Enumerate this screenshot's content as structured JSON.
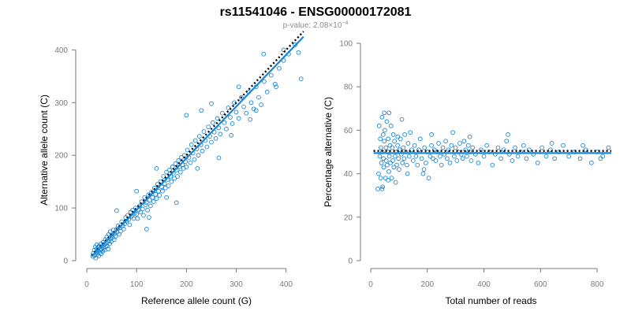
{
  "title": "rs11541046 - ENSG00000172081",
  "subtitle": {
    "prefix": "p-value: 2.08×10",
    "exponent": "−4"
  },
  "colors": {
    "points": "#1a87d6",
    "fit_line": "#1a87d6",
    "reference_line": "#000000",
    "axis": "#7a7a7a"
  },
  "chart_data": [
    {
      "type": "scatter",
      "xlabel": "Reference allele count (G)",
      "ylabel": "Alternative allele count (C)",
      "xlim": [
        0,
        440
      ],
      "ylim": [
        0,
        420
      ],
      "x_ticks": [
        0,
        100,
        200,
        300,
        400
      ],
      "y_ticks": [
        0,
        100,
        200,
        300,
        400
      ],
      "grid": false,
      "legend": "none",
      "fit_line": {
        "style": "solid",
        "points": [
          [
            10,
            8
          ],
          [
            435,
            425
          ]
        ]
      },
      "reference_line": {
        "style": "dotted",
        "points": [
          [
            10,
            10
          ],
          [
            435,
            435
          ]
        ]
      },
      "points": [
        [
          12,
          8
        ],
        [
          13,
          14
        ],
        [
          15,
          20
        ],
        [
          16,
          10
        ],
        [
          17,
          26
        ],
        [
          18,
          5
        ],
        [
          19,
          16
        ],
        [
          20,
          22
        ],
        [
          20,
          30
        ],
        [
          21,
          12
        ],
        [
          22,
          18
        ],
        [
          23,
          25
        ],
        [
          24,
          9
        ],
        [
          25,
          28
        ],
        [
          26,
          15
        ],
        [
          27,
          20
        ],
        [
          28,
          32
        ],
        [
          29,
          13
        ],
        [
          30,
          22
        ],
        [
          31,
          27
        ],
        [
          32,
          18
        ],
        [
          33,
          35
        ],
        [
          34,
          24
        ],
        [
          35,
          30
        ],
        [
          36,
          20
        ],
        [
          37,
          40
        ],
        [
          38,
          26
        ],
        [
          39,
          33
        ],
        [
          40,
          45
        ],
        [
          41,
          28
        ],
        [
          42,
          36
        ],
        [
          43,
          22
        ],
        [
          44,
          50
        ],
        [
          45,
          38
        ],
        [
          46,
          32
        ],
        [
          47,
          55
        ],
        [
          48,
          42
        ],
        [
          49,
          36
        ],
        [
          50,
          48
        ],
        [
          52,
          44
        ],
        [
          53,
          58
        ],
        [
          55,
          40
        ],
        [
          56,
          52
        ],
        [
          58,
          46
        ],
        [
          60,
          60
        ],
        [
          61,
          54
        ],
        [
          63,
          66
        ],
        [
          65,
          50
        ],
        [
          66,
          62
        ],
        [
          68,
          56
        ],
        [
          70,
          74
        ],
        [
          72,
          66
        ],
        [
          74,
          60
        ],
        [
          76,
          70
        ],
        [
          78,
          82
        ],
        [
          80,
          75
        ],
        [
          82,
          86
        ],
        [
          84,
          78
        ],
        [
          86,
          68
        ],
        [
          88,
          92
        ],
        [
          90,
          84
        ],
        [
          92,
          96
        ],
        [
          94,
          80
        ],
        [
          96,
          90
        ],
        [
          98,
          100
        ],
        [
          100,
          88
        ],
        [
          102,
          80
        ],
        [
          104,
          96
        ],
        [
          106,
          104
        ],
        [
          108,
          92
        ],
        [
          110,
          112
        ],
        [
          112,
          98
        ],
        [
          114,
          86
        ],
        [
          116,
          120
        ],
        [
          118,
          106
        ],
        [
          120,
          110
        ],
        [
          122,
          96
        ],
        [
          124,
          125
        ],
        [
          126,
          115
        ],
        [
          128,
          104
        ],
        [
          130,
          130
        ],
        [
          132,
          120
        ],
        [
          134,
          112
        ],
        [
          136,
          138
        ],
        [
          138,
          126
        ],
        [
          140,
          118
        ],
        [
          142,
          145
        ],
        [
          144,
          132
        ],
        [
          146,
          124
        ],
        [
          148,
          150
        ],
        [
          150,
          140
        ],
        [
          152,
          132
        ],
        [
          154,
          160
        ],
        [
          156,
          146
        ],
        [
          158,
          138
        ],
        [
          160,
          168
        ],
        [
          162,
          154
        ],
        [
          164,
          142
        ],
        [
          166,
          172
        ],
        [
          168,
          160
        ],
        [
          170,
          150
        ],
        [
          172,
          178
        ],
        [
          174,
          166
        ],
        [
          176,
          156
        ],
        [
          178,
          184
        ],
        [
          180,
          172
        ],
        [
          182,
          160
        ],
        [
          184,
          190
        ],
        [
          186,
          178
        ],
        [
          188,
          168
        ],
        [
          190,
          196
        ],
        [
          192,
          182
        ],
        [
          194,
          175
        ],
        [
          196,
          200
        ],
        [
          198,
          188
        ],
        [
          200,
          178
        ],
        [
          202,
          210
        ],
        [
          205,
          196
        ],
        [
          208,
          186
        ],
        [
          210,
          220
        ],
        [
          213,
          204
        ],
        [
          216,
          192
        ],
        [
          218,
          228
        ],
        [
          221,
          212
        ],
        [
          224,
          200
        ],
        [
          226,
          236
        ],
        [
          229,
          220
        ],
        [
          232,
          208
        ],
        [
          235,
          245
        ],
        [
          238,
          228
        ],
        [
          241,
          216
        ],
        [
          244,
          254
        ],
        [
          247,
          236
        ],
        [
          250,
          225
        ],
        [
          253,
          262
        ],
        [
          256,
          244
        ],
        [
          259,
          232
        ],
        [
          262,
          270
        ],
        [
          265,
          252
        ],
        [
          268,
          240
        ],
        [
          272,
          280
        ],
        [
          276,
          262
        ],
        [
          280,
          250
        ],
        [
          284,
          290
        ],
        [
          288,
          272
        ],
        [
          292,
          260
        ],
        [
          296,
          300
        ],
        [
          300,
          282
        ],
        [
          305,
          270
        ],
        [
          310,
          310
        ],
        [
          315,
          292
        ],
        [
          320,
          280
        ],
        [
          325,
          320
        ],
        [
          330,
          300
        ],
        [
          335,
          288
        ],
        [
          340,
          330
        ],
        [
          345,
          310
        ],
        [
          350,
          296
        ],
        [
          356,
          340
        ],
        [
          362,
          320
        ],
        [
          370,
          352
        ],
        [
          378,
          335
        ],
        [
          386,
          365
        ],
        [
          395,
          380
        ],
        [
          405,
          392
        ],
        [
          418,
          410
        ],
        [
          425,
          395
        ],
        [
          120,
          60
        ],
        [
          125,
          82
        ],
        [
          100,
          132
        ],
        [
          180,
          110
        ],
        [
          200,
          276
        ],
        [
          222,
          175
        ],
        [
          250,
          298
        ],
        [
          290,
          238
        ],
        [
          328,
          268
        ],
        [
          355,
          392
        ],
        [
          395,
          400
        ],
        [
          430,
          345
        ],
        [
          60,
          95
        ],
        [
          140,
          175
        ],
        [
          160,
          120
        ],
        [
          230,
          285
        ],
        [
          265,
          195
        ],
        [
          305,
          330
        ],
        [
          340,
          285
        ],
        [
          380,
          330
        ]
      ]
    },
    {
      "type": "scatter",
      "xlabel": "Total number of reads",
      "ylabel": "Percentage alternative (C)",
      "xlim": [
        0,
        850
      ],
      "ylim": [
        0,
        100
      ],
      "x_ticks": [
        0,
        200,
        400,
        600,
        800
      ],
      "y_ticks": [
        0,
        20,
        40,
        60,
        80,
        100
      ],
      "grid": false,
      "legend": "none",
      "fit_line": {
        "style": "solid",
        "points": [
          [
            10,
            49.5
          ],
          [
            850,
            49.5
          ]
        ]
      },
      "reference_line": {
        "style": "dotted",
        "points": [
          [
            10,
            50.5
          ],
          [
            850,
            50.5
          ]
        ]
      },
      "points": [
        [
          25,
          33
        ],
        [
          28,
          40
        ],
        [
          30,
          62
        ],
        [
          32,
          48
        ],
        [
          34,
          56
        ],
        [
          35,
          38
        ],
        [
          36,
          52
        ],
        [
          38,
          45
        ],
        [
          40,
          66
        ],
        [
          41,
          50
        ],
        [
          42,
          34
        ],
        [
          44,
          58
        ],
        [
          45,
          47
        ],
        [
          46,
          43
        ],
        [
          48,
          55
        ],
        [
          50,
          60
        ],
        [
          52,
          38
        ],
        [
          54,
          52
        ],
        [
          55,
          46
        ],
        [
          57,
          64
        ],
        [
          58,
          44
        ],
        [
          60,
          50
        ],
        [
          62,
          56
        ],
        [
          64,
          41
        ],
        [
          65,
          68
        ],
        [
          66,
          48
        ],
        [
          68,
          53
        ],
        [
          70,
          45
        ],
        [
          72,
          62
        ],
        [
          74,
          38
        ],
        [
          76,
          52
        ],
        [
          78,
          46
        ],
        [
          80,
          58
        ],
        [
          82,
          43
        ],
        [
          84,
          55
        ],
        [
          86,
          48
        ],
        [
          88,
          36
        ],
        [
          90,
          50
        ],
        [
          92,
          44
        ],
        [
          95,
          53
        ],
        [
          98,
          47
        ],
        [
          100,
          42
        ],
        [
          102,
          51
        ],
        [
          105,
          56
        ],
        [
          108,
          49
        ],
        [
          110,
          65
        ],
        [
          112,
          45
        ],
        [
          115,
          52
        ],
        [
          118,
          47
        ],
        [
          120,
          58
        ],
        [
          124,
          50
        ],
        [
          128,
          44
        ],
        [
          132,
          54
        ],
        [
          136,
          48
        ],
        [
          140,
          59
        ],
        [
          145,
          51
        ],
        [
          150,
          46
        ],
        [
          155,
          53
        ],
        [
          160,
          48
        ],
        [
          165,
          44
        ],
        [
          170,
          51
        ],
        [
          175,
          56
        ],
        [
          180,
          47
        ],
        [
          185,
          40
        ],
        [
          190,
          52
        ],
        [
          195,
          45
        ],
        [
          200,
          50
        ],
        [
          205,
          38
        ],
        [
          210,
          48
        ],
        [
          215,
          53
        ],
        [
          220,
          47
        ],
        [
          225,
          51
        ],
        [
          230,
          46
        ],
        [
          235,
          50
        ],
        [
          240,
          54
        ],
        [
          245,
          48
        ],
        [
          250,
          44
        ],
        [
          255,
          52
        ],
        [
          260,
          49
        ],
        [
          265,
          55
        ],
        [
          270,
          47
        ],
        [
          275,
          51
        ],
        [
          280,
          45
        ],
        [
          285,
          53
        ],
        [
          290,
          59
        ],
        [
          295,
          48
        ],
        [
          300,
          52
        ],
        [
          305,
          46
        ],
        [
          310,
          50
        ],
        [
          315,
          54
        ],
        [
          320,
          49
        ],
        [
          325,
          47
        ],
        [
          330,
          55
        ],
        [
          335,
          51
        ],
        [
          340,
          48
        ],
        [
          345,
          53
        ],
        [
          350,
          50
        ],
        [
          355,
          46
        ],
        [
          360,
          52
        ],
        [
          370,
          49
        ],
        [
          380,
          45
        ],
        [
          390,
          51
        ],
        [
          400,
          48
        ],
        [
          410,
          53
        ],
        [
          420,
          50
        ],
        [
          430,
          44
        ],
        [
          440,
          49
        ],
        [
          450,
          52
        ],
        [
          460,
          47
        ],
        [
          470,
          51
        ],
        [
          480,
          55
        ],
        [
          490,
          49
        ],
        [
          500,
          46
        ],
        [
          510,
          52
        ],
        [
          520,
          48
        ],
        [
          530,
          50
        ],
        [
          540,
          53
        ],
        [
          550,
          47
        ],
        [
          560,
          51
        ],
        [
          575,
          49
        ],
        [
          590,
          45
        ],
        [
          605,
          52
        ],
        [
          620,
          48
        ],
        [
          635,
          51
        ],
        [
          650,
          47
        ],
        [
          665,
          50
        ],
        [
          680,
          53
        ],
        [
          700,
          48
        ],
        [
          720,
          50
        ],
        [
          740,
          47
        ],
        [
          760,
          51
        ],
        [
          780,
          45
        ],
        [
          800,
          50
        ],
        [
          820,
          48
        ],
        [
          840,
          52
        ],
        [
          40,
          33
        ],
        [
          48,
          68
        ],
        [
          62,
          37
        ],
        [
          96,
          57
        ],
        [
          130,
          40
        ],
        [
          188,
          42
        ],
        [
          215,
          58
        ],
        [
          350,
          57
        ],
        [
          485,
          58
        ],
        [
          640,
          54
        ],
        [
          750,
          53
        ],
        [
          812,
          47
        ]
      ]
    }
  ]
}
